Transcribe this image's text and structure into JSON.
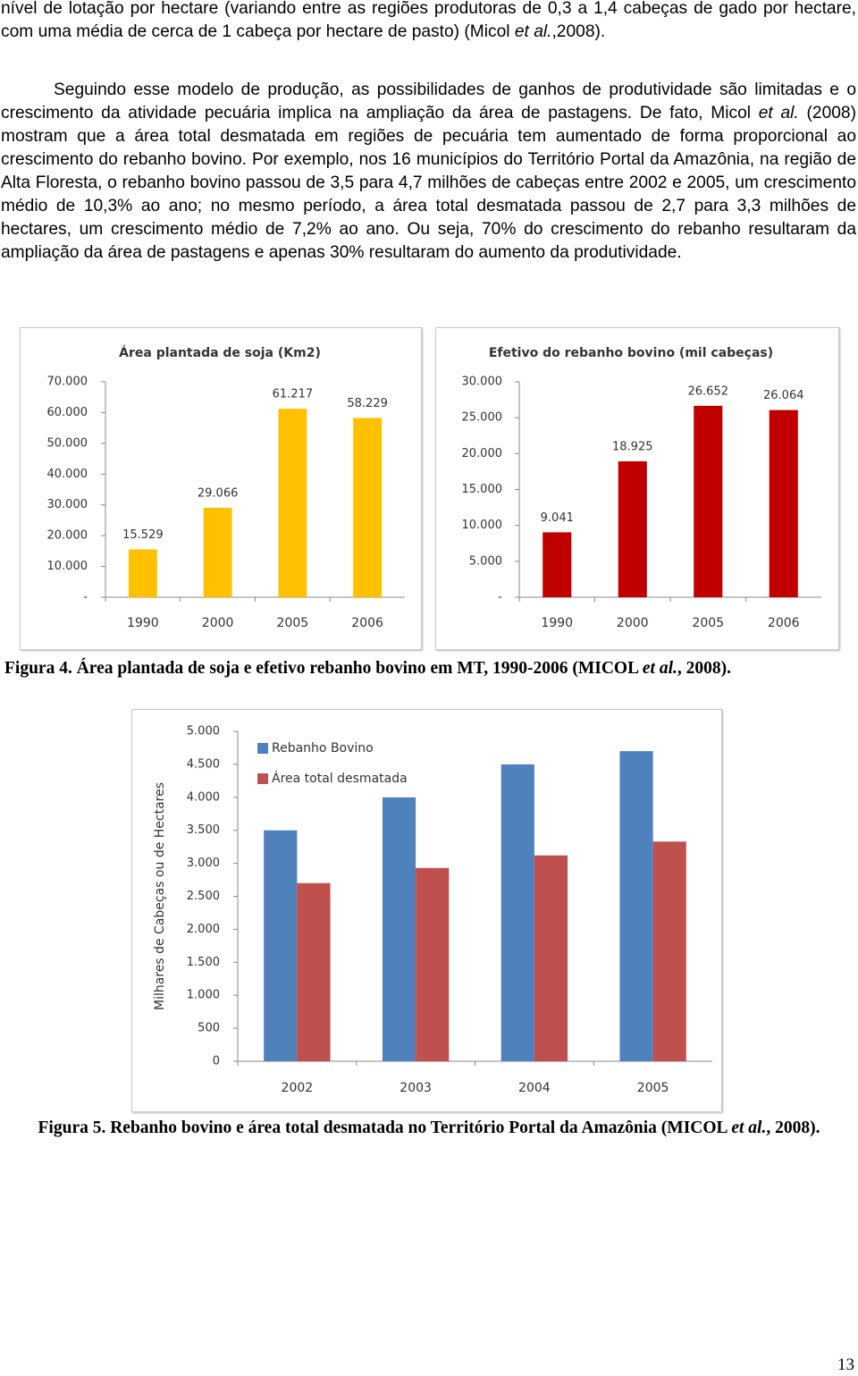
{
  "paragraphs": [
    {
      "runs": [
        {
          "text": "nível de lotação por hectare (variando entre as regiões produtoras de 0,3 a 1,4 cabeças de gado por hectare, com uma média de cerca de 1 cabeça por hectare de pasto) (Micol "
        },
        {
          "text": "et al.",
          "style": "italic"
        },
        {
          "text": ",2008)."
        }
      ]
    },
    {
      "runs": [
        {
          "text": "Seguindo esse modelo de produção, as possibilidades de ganhos de produtividade são limitadas e o crescimento da atividade pecuária implica na ampliação da área de pastagens. De fato, Micol "
        },
        {
          "text": "et al.",
          "style": "italic"
        },
        {
          "text": " (2008) mostram que a área total desmatada em regiões de pecuária tem aumentado de forma proporcional ao crescimento do rebanho bovino. Por exemplo, nos 16 municípios do Território Portal da Amazônia, na região de Alta Floresta, o rebanho bovino passou de 3,5 para 4,7 milhões de cabeças entre 2002 e 2005, um crescimento médio de 10,3% ao ano; no mesmo período, a área total desmatada passou de 2,7 para 3,3 milhões de hectares, um crescimento médio de 7,2% ao ano. Ou seja, 70% do crescimento do rebanho resultaram da ampliação da área de pastagens e apenas 30% resultaram do aumento da produtividade."
        }
      ]
    }
  ],
  "chart_data": [
    {
      "type": "bar",
      "title": "Área plantada de soja (Km2)",
      "categories": [
        "1990",
        "2000",
        "2005",
        "2006"
      ],
      "values": [
        15529,
        29066,
        61217,
        58229
      ],
      "value_labels": [
        "15.529",
        "29.066",
        "61.217",
        "58.229"
      ],
      "color": "#ffc000",
      "ylim": [
        0,
        70000
      ],
      "yticks": [
        {
          "value": 0,
          "label": "-"
        },
        {
          "value": 10000,
          "label": "10.000"
        },
        {
          "value": 20000,
          "label": "20.000"
        },
        {
          "value": 30000,
          "label": "30.000"
        },
        {
          "value": 40000,
          "label": "40.000"
        },
        {
          "value": 50000,
          "label": "50.000"
        },
        {
          "value": 60000,
          "label": "60.000"
        },
        {
          "value": 70000,
          "label": "70.000"
        }
      ],
      "grid": false
    },
    {
      "type": "bar",
      "title": "Efetivo do rebanho bovino (mil cabeças)",
      "categories": [
        "1990",
        "2000",
        "2005",
        "2006"
      ],
      "values": [
        9041,
        18925,
        26652,
        26064
      ],
      "value_labels": [
        "9.041",
        "18.925",
        "26.652",
        "26.064"
      ],
      "color": "#c00000",
      "ylim": [
        0,
        30000
      ],
      "yticks": [
        {
          "value": 0,
          "label": "-"
        },
        {
          "value": 5000,
          "label": "5.000"
        },
        {
          "value": 10000,
          "label": "10.000"
        },
        {
          "value": 15000,
          "label": "15.000"
        },
        {
          "value": 20000,
          "label": "20.000"
        },
        {
          "value": 25000,
          "label": "25.000"
        },
        {
          "value": 30000,
          "label": "30.000"
        }
      ],
      "grid": false
    },
    {
      "type": "grouped_bar",
      "y_label": "Milhares de Cabeças ou de Hectares",
      "categories": [
        "2002",
        "2003",
        "2004",
        "2005"
      ],
      "series": [
        {
          "name": "Rebanho Bovino",
          "color": "#4f81bd",
          "values": [
            3500,
            4000,
            4500,
            4700
          ]
        },
        {
          "name": "Área total desmatada",
          "color": "#c0504d",
          "values": [
            2700,
            2930,
            3120,
            3330
          ]
        }
      ],
      "ylim": [
        0,
        5000
      ],
      "yticks": [
        0,
        500,
        {
          "value": 1000,
          "label": "1.000"
        },
        {
          "value": 1500,
          "label": "1.500"
        },
        {
          "value": 2000,
          "label": "2.000"
        },
        {
          "value": 2500,
          "label": "2.500"
        },
        {
          "value": 3000,
          "label": "3.000"
        },
        {
          "value": 3500,
          "label": "3.500"
        },
        {
          "value": 4000,
          "label": "4.000"
        },
        {
          "value": 4500,
          "label": "4.500"
        },
        {
          "value": 5000,
          "label": "5.000"
        }
      ],
      "legend": "top-left",
      "grid": false
    }
  ],
  "captions": [
    {
      "runs": [
        {
          "text": "Figura 4. Área plantada de soja e efetivo rebanho bovino em MT, 1990-2006 (MICOL "
        },
        {
          "text": "et al.",
          "style": "italic"
        },
        {
          "text": ", 2008)."
        }
      ]
    },
    {
      "runs": [
        {
          "text": "Figura 5. Rebanho bovino e área total desmatada no Território Portal da Amazônia (MICOL "
        },
        {
          "text": "et al.",
          "style": "italic"
        },
        {
          "text": ", 2008)."
        }
      ]
    }
  ],
  "page_number": "13"
}
